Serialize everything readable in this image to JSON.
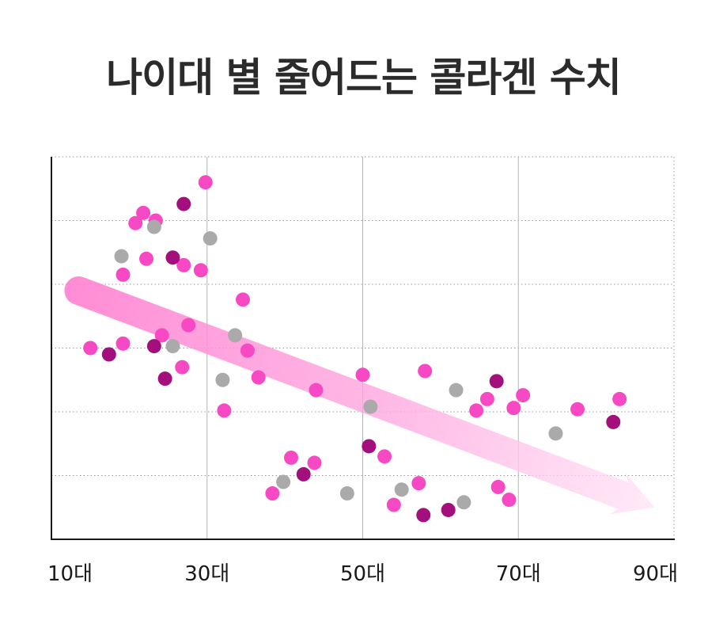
{
  "chart_data": {
    "type": "scatter",
    "title": "나이대 별 줄어드는 콜라겐 수치",
    "xlabel": "",
    "ylabel": "",
    "x_ticks": [
      "10대",
      "30대",
      "50대",
      "70대",
      "90대"
    ],
    "xlim": [
      10,
      90
    ],
    "ylim": [
      0,
      6
    ],
    "grid": true,
    "trend_arrow": {
      "from": [
        13.5,
        3.9
      ],
      "to": [
        87.5,
        0.5
      ],
      "color": "#ff7fd0"
    },
    "colors": {
      "pink": "#f749c3",
      "magenta": "#a30f7c",
      "gray": "#aaaaaa"
    },
    "series": [
      {
        "color_key": "pink",
        "points": [
          [
            15.0,
            3.0
          ],
          [
            19.2,
            3.07
          ],
          [
            19.2,
            4.15
          ],
          [
            20.8,
            4.96
          ],
          [
            21.8,
            5.12
          ],
          [
            22.2,
            4.4
          ],
          [
            24.2,
            3.2
          ],
          [
            26.8,
            2.7
          ],
          [
            27.0,
            4.3
          ],
          [
            27.6,
            3.36
          ],
          [
            23.4,
            5.0
          ],
          [
            29.2,
            4.22
          ],
          [
            29.8,
            5.6
          ],
          [
            32.2,
            2.02
          ],
          [
            34.6,
            3.76
          ],
          [
            35.2,
            2.96
          ],
          [
            36.6,
            2.54
          ],
          [
            38.4,
            0.72
          ],
          [
            40.8,
            1.28
          ],
          [
            43.8,
            1.2
          ],
          [
            44.0,
            2.34
          ],
          [
            50.0,
            2.58
          ],
          [
            52.8,
            1.3
          ],
          [
            54.0,
            0.54
          ],
          [
            57.2,
            0.88
          ],
          [
            58.0,
            2.64
          ],
          [
            64.6,
            2.02
          ],
          [
            66.0,
            2.2
          ],
          [
            67.4,
            0.82
          ],
          [
            68.8,
            0.62
          ],
          [
            69.4,
            2.06
          ],
          [
            70.6,
            2.26
          ],
          [
            77.6,
            2.04
          ],
          [
            83.0,
            2.2
          ]
        ]
      },
      {
        "color_key": "magenta",
        "points": [
          [
            17.4,
            2.9
          ],
          [
            23.2,
            3.03
          ],
          [
            24.6,
            2.52
          ],
          [
            25.6,
            4.42
          ],
          [
            27.0,
            5.26
          ],
          [
            42.4,
            1.02
          ],
          [
            50.8,
            1.46
          ],
          [
            57.8,
            0.38
          ],
          [
            61.0,
            0.46
          ],
          [
            67.2,
            2.48
          ],
          [
            82.2,
            1.84
          ]
        ]
      },
      {
        "color_key": "gray",
        "points": [
          [
            19.0,
            4.44
          ],
          [
            23.2,
            4.9
          ],
          [
            25.6,
            3.03
          ],
          [
            30.4,
            4.72
          ],
          [
            32.0,
            2.5
          ],
          [
            33.6,
            3.2
          ],
          [
            39.8,
            0.9
          ],
          [
            48.0,
            0.72
          ],
          [
            51.0,
            2.08
          ],
          [
            55.0,
            0.78
          ],
          [
            62.0,
            2.34
          ],
          [
            63.0,
            0.58
          ],
          [
            74.8,
            1.66
          ]
        ]
      }
    ]
  }
}
